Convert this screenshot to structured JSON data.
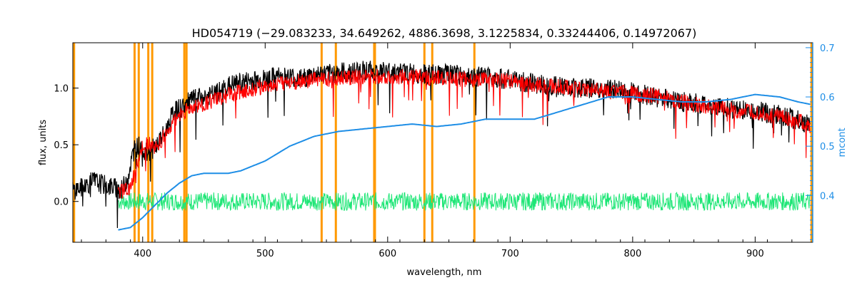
{
  "chart_data": {
    "type": "line",
    "title": "HD054719   (−29.083233, 34.649262, 4886.3698, 3.1225834, 0.33244406, 0.14972067)",
    "xlabel": "wavelength, nm",
    "ylabel": "flux, units",
    "y2label": "mcont",
    "xlim": [
      343,
      947
    ],
    "ylim": [
      -0.36,
      1.4
    ],
    "y2lim": [
      0.305,
      0.71
    ],
    "x_ticks": [
      400,
      500,
      600,
      700,
      800,
      900
    ],
    "x_tick_labels": [
      "400",
      "500",
      "600",
      "700",
      "800",
      "900"
    ],
    "y_ticks": [
      0.0,
      0.5,
      1.0
    ],
    "y_tick_labels": [
      "0.0",
      "0.5",
      "1.0"
    ],
    "y2_ticks": [
      0.4,
      0.5,
      0.6,
      0.7
    ],
    "y2_tick_labels": [
      "0.4",
      "0.5",
      "0.6",
      "0.7"
    ],
    "grid": false,
    "legend": "none",
    "colors": {
      "observed": "#000000",
      "model": "#ff0000",
      "continuum": "#1e8ee6",
      "residual": "#1ee676",
      "line_markers": "#ff9900",
      "axis_right": "#1e8ee6",
      "axis_left": "#000000"
    },
    "vertical_markers_nm": [
      344,
      393.4,
      396.8,
      404.6,
      407.8,
      434.0,
      435.8,
      546.1,
      557.7,
      589.0,
      589.6,
      630.0,
      636.4,
      670.8,
      946
    ],
    "series": [
      {
        "role": "observed",
        "x": [
          343,
          350,
          360,
          370,
          378,
          383,
          388,
          393,
          398,
          403,
          410,
          418,
          425,
          430,
          436,
          440,
          450,
          460,
          470,
          480,
          490,
          500,
          510,
          520,
          530,
          540,
          550,
          560,
          570,
          580,
          590,
          600,
          610,
          620,
          630,
          640,
          650,
          660,
          670,
          680,
          690,
          700,
          720,
          740,
          760,
          780,
          800,
          820,
          840,
          860,
          880,
          900,
          920,
          935,
          945
        ],
        "y": [
          0.1,
          0.12,
          0.18,
          0.14,
          0.12,
          0.1,
          0.22,
          0.46,
          0.5,
          0.42,
          0.48,
          0.6,
          0.78,
          0.82,
          0.86,
          0.9,
          0.92,
          0.95,
          1.02,
          1.05,
          1.07,
          1.08,
          1.1,
          1.1,
          1.08,
          1.12,
          1.12,
          1.14,
          1.14,
          1.16,
          1.15,
          1.15,
          1.14,
          1.13,
          1.12,
          1.12,
          1.12,
          1.11,
          1.1,
          1.1,
          1.09,
          1.07,
          1.04,
          1.02,
          1.0,
          0.99,
          0.97,
          0.92,
          0.88,
          0.85,
          0.82,
          0.8,
          0.76,
          0.72,
          0.66
        ]
      },
      {
        "role": "model",
        "x": [
          380,
          385,
          390,
          395,
          400,
          405,
          410,
          418,
          425,
          430,
          436,
          445,
          455,
          470,
          485,
          500,
          520,
          540,
          560,
          580,
          600,
          620,
          640,
          660,
          680,
          700,
          720,
          740,
          760,
          780,
          800,
          820,
          840,
          860,
          880,
          900,
          920,
          935,
          945
        ],
        "y": [
          0.08,
          0.1,
          0.12,
          0.3,
          0.48,
          0.52,
          0.46,
          0.58,
          0.7,
          0.76,
          0.8,
          0.84,
          0.88,
          0.94,
          0.98,
          1.02,
          1.05,
          1.07,
          1.09,
          1.1,
          1.1,
          1.1,
          1.09,
          1.08,
          1.07,
          1.06,
          1.03,
          1.01,
          0.99,
          0.97,
          0.95,
          0.93,
          0.88,
          0.84,
          0.81,
          0.78,
          0.75,
          0.71,
          0.67
        ]
      },
      {
        "role": "continuum",
        "axis": "right",
        "x": [
          380,
          390,
          400,
          410,
          420,
          430,
          440,
          450,
          460,
          470,
          480,
          490,
          500,
          520,
          540,
          560,
          580,
          600,
          620,
          640,
          660,
          680,
          700,
          720,
          740,
          760,
          780,
          800,
          820,
          840,
          860,
          880,
          900,
          920,
          935,
          945
        ],
        "y": [
          0.33,
          0.335,
          0.355,
          0.38,
          0.405,
          0.425,
          0.44,
          0.445,
          0.445,
          0.445,
          0.45,
          0.46,
          0.47,
          0.5,
          0.52,
          0.53,
          0.535,
          0.54,
          0.545,
          0.54,
          0.545,
          0.555,
          0.555,
          0.555,
          0.57,
          0.585,
          0.6,
          0.6,
          0.595,
          0.59,
          0.59,
          0.595,
          0.605,
          0.6,
          0.59,
          0.585
        ]
      },
      {
        "role": "residual",
        "x": [
          380,
          400,
          450,
          500,
          550,
          600,
          650,
          700,
          750,
          800,
          850,
          900,
          945
        ],
        "y": [
          0.0,
          0.0,
          0.0,
          0.0,
          0.0,
          0.0,
          0.0,
          0.0,
          0.0,
          0.0,
          0.0,
          0.0,
          0.0
        ]
      }
    ]
  }
}
